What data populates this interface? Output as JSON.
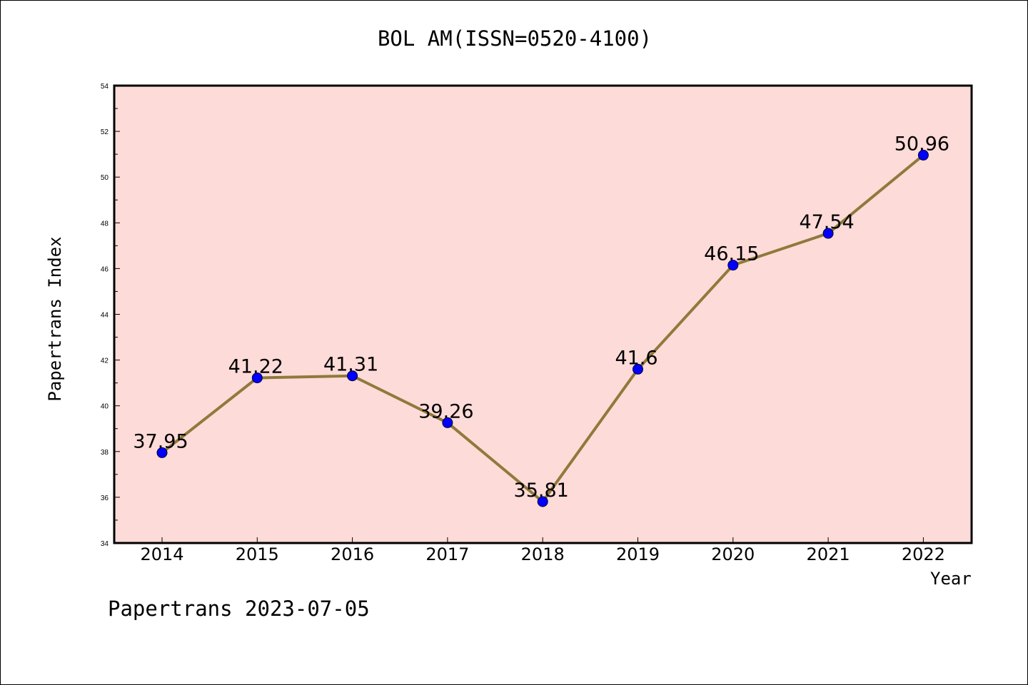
{
  "title": "BOL AM(ISSN=0520-4100)",
  "footer": "Papertrans 2023-07-05",
  "chart_data": {
    "type": "line",
    "title": "BOL AM(ISSN=0520-4100)",
    "xlabel": "Year",
    "ylabel": "Papertrans Index",
    "categories": [
      "2014",
      "2015",
      "2016",
      "2017",
      "2018",
      "2019",
      "2020",
      "2021",
      "2022"
    ],
    "series": [
      {
        "values": [
          37.95,
          41.22,
          41.31,
          39.26,
          35.81,
          41.6,
          46.15,
          47.54,
          50.96
        ],
        "labels": [
          "37.95",
          "41.22",
          "41.31",
          "39.26",
          "35.81",
          "41.6",
          "46.15",
          "47.54",
          "50.96"
        ]
      }
    ],
    "ylim": [
      34,
      54
    ],
    "yticks": [
      34,
      36,
      38,
      40,
      42,
      44,
      46,
      48,
      50,
      52,
      54
    ],
    "ytick_labels": [
      "34",
      "36",
      "38",
      "40",
      "42",
      "44",
      "46",
      "48",
      "50",
      "52",
      "54"
    ],
    "grid": false,
    "colors": {
      "plot_background": "#fddbd8",
      "line": "#8f7a3b",
      "marker": "#0000ff"
    }
  }
}
